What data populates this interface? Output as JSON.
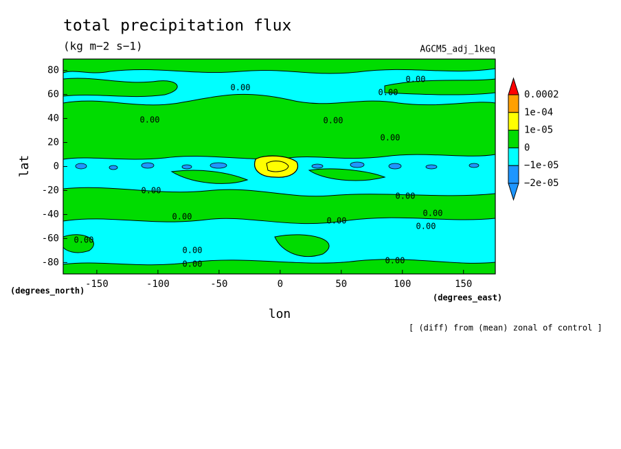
{
  "chart_data": {
    "type": "contour",
    "title": "total precipitation flux",
    "subtitle": "(kg m−2 s−1)",
    "dataset": "AGCM5_adj_1keq",
    "xlabel": "lon",
    "ylabel": "lat",
    "xunits": "(degrees_east)",
    "yunits": "(degrees_north)",
    "note": "[ (diff) from (mean) zonal of control ]",
    "xlim": [
      -177.5,
      176
    ],
    "ylim": [
      -89.5,
      89.5
    ],
    "xticks": [
      -150,
      -100,
      -50,
      0,
      50,
      100,
      150
    ],
    "yticks": [
      -80,
      -60,
      -40,
      -20,
      0,
      20,
      40,
      60,
      80
    ],
    "colorbar": {
      "levels": [
        0.0002,
        {
          "value": 0.0001,
          "label": "1e-04"
        },
        {
          "value": 1e-05,
          "label": "1e-05"
        },
        0,
        {
          "value": -1e-05,
          "label": "−1e-05"
        },
        {
          "value": -2e-05,
          "label": "−2e-05"
        }
      ],
      "colors": [
        "#ff0000",
        "#ffa000",
        "#ffff00",
        "#00dc00",
        "#00ffff",
        "#1e96ff",
        "#1e96ff"
      ]
    },
    "contour_labels": [
      "0.00",
      "0.00",
      "0.00",
      "0.00",
      "0.00",
      "0.00",
      "0.00",
      "0.00",
      "0.00",
      "0.00",
      "0.00",
      "0.00",
      "0.00",
      "0.00",
      "0.00",
      "0.00"
    ]
  }
}
